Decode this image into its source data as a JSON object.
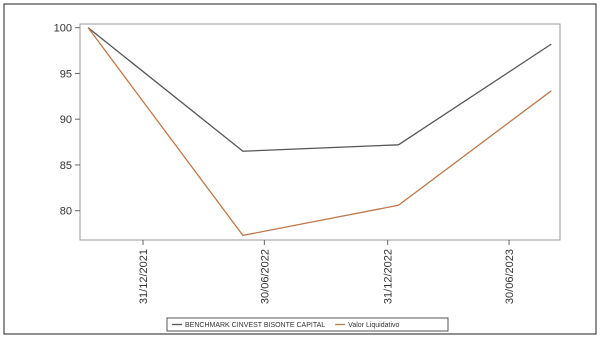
{
  "chart_data": {
    "type": "line",
    "series": [
      {
        "name": "BENCHMARK CINVEST BISONTE CAPITAL",
        "color": "#555555",
        "x": [
          "2021-10-10",
          "2022-05-29",
          "2023-01-16",
          "2023-09-01"
        ],
        "values": [
          100,
          86.5,
          87.2,
          98.2
        ]
      },
      {
        "name": "Valor Liquidativo",
        "color": "#c0774a",
        "x": [
          "2021-10-10",
          "2022-05-29",
          "2023-01-16",
          "2023-09-01"
        ],
        "values": [
          100,
          77.3,
          80.6,
          93.1
        ]
      }
    ],
    "xlim": [
      "2021-09-28",
      "2023-09-14"
    ],
    "xticks": [
      {
        "value": "2021-12-31",
        "label": "31/12/2021"
      },
      {
        "value": "2022-06-30",
        "label": "30/06/2022"
      },
      {
        "value": "2022-12-31",
        "label": "31/12/2022"
      },
      {
        "value": "2023-06-30",
        "label": "30/06/2023"
      }
    ],
    "ylim": [
      76.8,
      100.4
    ],
    "yticks": [
      80,
      85,
      90,
      95,
      100
    ]
  }
}
